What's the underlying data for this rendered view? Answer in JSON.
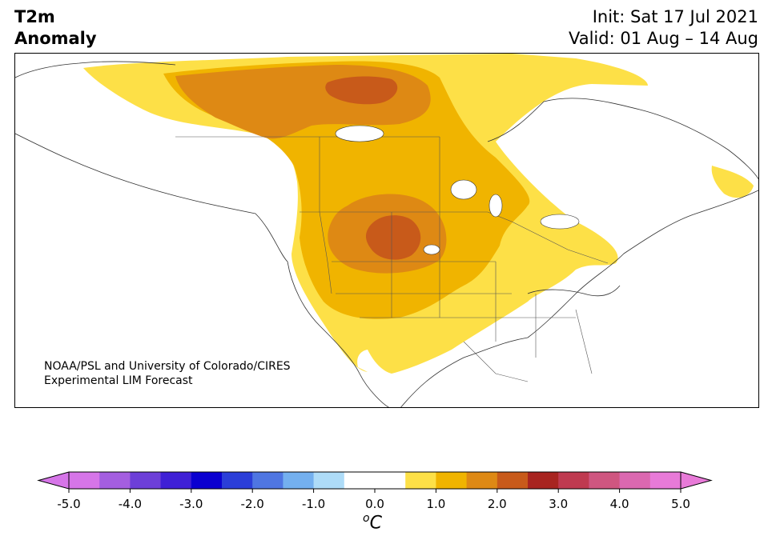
{
  "header": {
    "title_line1": "T2m",
    "title_line2": "Anomaly",
    "init": "Init: Sat 17 Jul 2021",
    "valid": "Valid: 01 Aug – 14 Aug"
  },
  "map": {
    "region": "North America",
    "variable": "2-metre temperature anomaly",
    "anomaly_pattern": [
      {
        "level": 0.5,
        "color": "#fde047"
      },
      {
        "level": 1.0,
        "color": "#f0b400"
      },
      {
        "level": 1.5,
        "color": "#de8914"
      },
      {
        "level": 2.0,
        "color": "#c85a1a"
      }
    ]
  },
  "credit": {
    "line1": "NOAA/PSL and University of Colorado/CIRES",
    "line2": "Experimental LIM Forecast"
  },
  "colorbar": {
    "unit_base": "C",
    "unit_sup": "o",
    "ticks": [
      "-5.0",
      "-4.0",
      "-3.0",
      "-2.0",
      "-1.0",
      "0.0",
      "1.0",
      "2.0",
      "3.0",
      "4.0",
      "5.0"
    ],
    "under_color": "#d675e8",
    "over_color": "#e87ad8",
    "colors": [
      "#d675e8",
      "#a45ee0",
      "#6d3fd8",
      "#3f20d6",
      "#0b00d0",
      "#2b3ed8",
      "#4f76e2",
      "#74b0ef",
      "#aedcf8",
      "#ffffff",
      "#ffffff",
      "#fde047",
      "#f0b400",
      "#de8914",
      "#c85a1a",
      "#a82420",
      "#bf3a50",
      "#cf5680",
      "#db68b0",
      "#e87ad8"
    ]
  }
}
